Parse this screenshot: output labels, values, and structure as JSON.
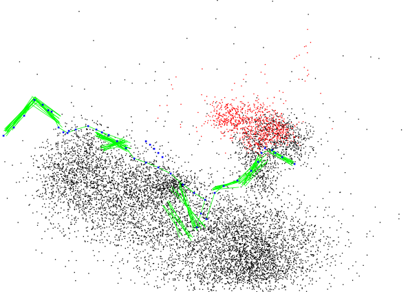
{
  "view": {
    "background": "#ffffff",
    "map_point_color": "#000000",
    "local_map_point_color": "#ff0000",
    "keyframe_color": "#0000ff",
    "covisibility_graph_color": "#00ff00"
  }
}
